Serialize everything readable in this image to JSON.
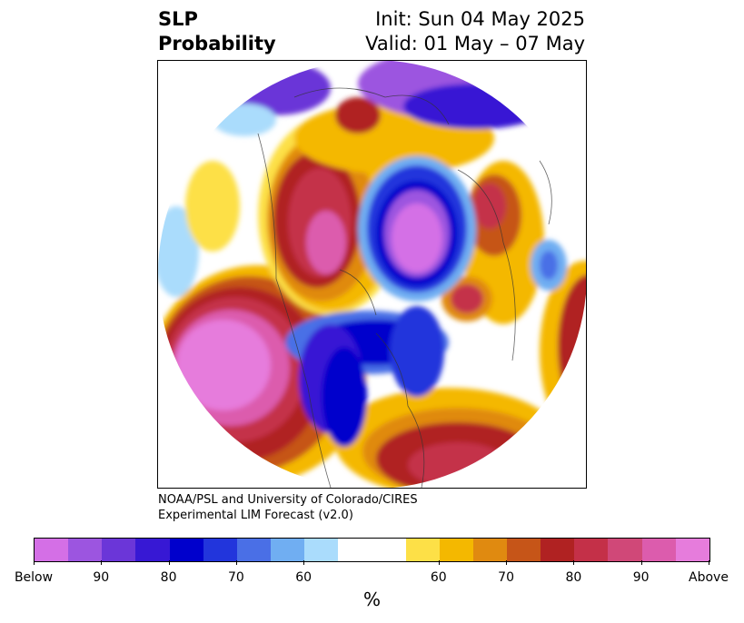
{
  "title": {
    "left_line1": "SLP",
    "left_line2": "Probability",
    "right_line1": "Init: Sun 04 May 2025",
    "right_line2": "Valid: 01 May – 07 May"
  },
  "credit": {
    "line1": "NOAA/PSL and University of Colorado/CIRES",
    "line2": "Experimental LIM Forecast (v2.0)"
  },
  "colorbar": {
    "unit": "%",
    "colors": [
      "#d46fe6",
      "#9c55e0",
      "#6b36d8",
      "#3718d4",
      "#0000cc",
      "#2235dc",
      "#4a6fe6",
      "#70aef2",
      "#aadcfc",
      "#ffffff",
      "#ffffff",
      "#fde047",
      "#f4b800",
      "#e08a10",
      "#c65518",
      "#b02222",
      "#c43048",
      "#d04878",
      "#dc5cad",
      "#e67cdc"
    ],
    "ticks": [
      {
        "label": "Below",
        "idx": 0
      },
      {
        "label": "90",
        "idx": 2
      },
      {
        "label": "80",
        "idx": 4
      },
      {
        "label": "70",
        "idx": 6
      },
      {
        "label": "60",
        "idx": 8
      },
      {
        "label": "60",
        "idx": 12
      },
      {
        "label": "70",
        "idx": 14
      },
      {
        "label": "80",
        "idx": 16
      },
      {
        "label": "90",
        "idx": 18
      },
      {
        "label": "Above",
        "idx": 20
      }
    ]
  }
}
